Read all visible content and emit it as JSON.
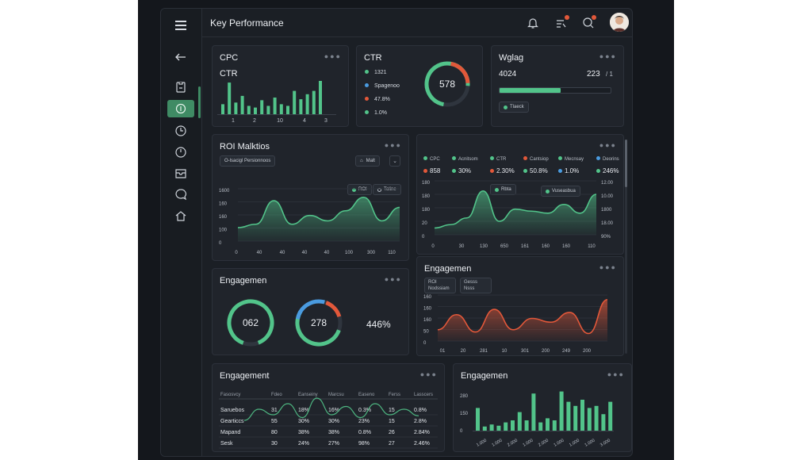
{
  "header": {
    "title": "Key Performance"
  },
  "icons": [
    "menu-icon",
    "back-arrow-icon",
    "clipboard-icon",
    "dollar-icon",
    "clock-icon",
    "clock-outline-icon",
    "inbox-icon",
    "chat-icon",
    "home-icon",
    "bell-icon",
    "notification-icon",
    "user-search-icon"
  ],
  "colors": {
    "accent_green": "#52c48a",
    "accent_red": "#e2583a",
    "accent_blue": "#4a9be0",
    "background": "#14171c",
    "panel": "#20242b"
  },
  "cpc_card": {
    "title": "CPC",
    "subtitle": "CTR",
    "x_labels": [
      "1",
      "2",
      "10",
      "4",
      "3"
    ],
    "bars": [
      0.3,
      0.95,
      0.35,
      0.55,
      0.25,
      0.2,
      0.42,
      0.25,
      0.5,
      0.3,
      0.25,
      0.7,
      0.45,
      0.6,
      0.7,
      1.0
    ]
  },
  "ctr_card": {
    "title": "CTR",
    "gauge_value": "578",
    "legend": [
      {
        "label": "1321",
        "color": "#52c48a"
      },
      {
        "label": "Spagenoo",
        "color": "#4a9be0"
      },
      {
        "label": "47.8%",
        "color": "#e2583a"
      },
      {
        "label": "1.0%",
        "color": "#52c48a"
      }
    ]
  },
  "wglag_card": {
    "title": "Wglag",
    "value": "4024",
    "right_value": "223",
    "right_suffix": "/ 1",
    "progress": 0.55,
    "pill": "Tlaeck"
  },
  "roi_card": {
    "title": "ROI Malktios",
    "filter": "O-lsacigl Persionnoos",
    "select_label": "Malt",
    "legend_a": "ROI",
    "legend_b": "Toline",
    "y_labels": [
      "1600",
      "160",
      "160",
      "100",
      "0"
    ],
    "x_labels": [
      "0",
      "40",
      "40",
      "40",
      "40",
      "100",
      "300",
      "110"
    ],
    "series": [
      2,
      2.5,
      6,
      2.5,
      3.8,
      3,
      4.5,
      6.5,
      3,
      5
    ]
  },
  "multi_card": {
    "legend": [
      {
        "label": "CPC",
        "color": "#52c48a"
      },
      {
        "label": "Acnitsom",
        "color": "#52c48a"
      },
      {
        "label": "CTR",
        "color": "#52c48a"
      },
      {
        "label": "Cantsiop",
        "color": "#e2583a"
      },
      {
        "label": "Mecnsay",
        "color": "#52c48a"
      },
      {
        "label": "Deorins",
        "color": "#4a9be0"
      }
    ],
    "values": [
      {
        "label": "858",
        "color": "#e2583a"
      },
      {
        "label": "30%",
        "color": "#52c48a"
      },
      {
        "label": "2.30%",
        "color": "#e2583a"
      },
      {
        "label": "50.8%",
        "color": "#52c48a"
      },
      {
        "label": "1.0%",
        "color": "#4a9be0"
      },
      {
        "label": "246%",
        "color": "#52c48a"
      }
    ],
    "y_left": [
      "180",
      "180",
      "180",
      "20",
      "0"
    ],
    "y_right": [
      "12.00",
      "10.00",
      "1800",
      "18.00",
      "90%"
    ],
    "x_labels": [
      "0",
      "30",
      "130",
      "650",
      "161",
      "160",
      "160",
      "110"
    ],
    "tag_a": "Rbta",
    "tag_b": "Vuseasbua",
    "series": [
      1,
      1.5,
      2.5,
      6.5,
      2,
      3.8,
      3.5,
      3.2,
      4.5,
      3.2,
      6
    ]
  },
  "engagement_gauges": {
    "title": "Engagemen",
    "gauge1": "062",
    "gauge2": "278",
    "value3": "446%"
  },
  "engagement_red": {
    "title": "Engagemen",
    "tab_a_line1": "ROI",
    "tab_a_line2": "Nodssiam",
    "tab_b_line1": "Gesss",
    "tab_b_line2": "Nsss",
    "y_labels": [
      "160",
      "160",
      "160",
      "50",
      "0"
    ],
    "x_labels": [
      "01",
      "20",
      "281",
      "10",
      "301",
      "200",
      "249",
      "200"
    ],
    "series": [
      1.5,
      3.5,
      1.2,
      4.2,
      1.5,
      3.0,
      2.5,
      3.8,
      1.0,
      5.5
    ]
  },
  "engagement_table": {
    "title": "Engagement",
    "columns": [
      "Fasosvcy",
      "Fdeo",
      "Eanseiny",
      "Marcsu",
      "Easeno",
      "Ferss",
      "Lasscers"
    ],
    "rows": [
      [
        "Saruebos",
        "31",
        "18%",
        "16%",
        "0.3%",
        "15",
        "0.8%"
      ],
      [
        "Gearticcs",
        "55",
        "30%",
        "30%",
        "23%",
        "15",
        "2.8%"
      ],
      [
        "Mapand",
        "80",
        "38%",
        "38%",
        "0.8%",
        "26",
        "2.84%"
      ],
      [
        "Sesk",
        "30",
        "24%",
        "27%",
        "98%",
        "27",
        "2.46%"
      ]
    ],
    "line": [
      1,
      3,
      2,
      4,
      1.5,
      5,
      2,
      3.5,
      1.5,
      4,
      2,
      3,
      1.8
    ]
  },
  "engagement_bars": {
    "title": "Engagemen",
    "y_labels": [
      "280",
      "150",
      "0"
    ],
    "x_labels": [
      "1.000",
      "1.000",
      "2.000",
      "1.000",
      "2.000",
      "1.000",
      "1.000",
      "1.000",
      "3.000"
    ],
    "bars": [
      0.55,
      0.1,
      0.15,
      0.12,
      0.2,
      0.25,
      0.45,
      0.25,
      0.9,
      0.2,
      0.3,
      0.25,
      0.95,
      0.7,
      0.6,
      0.75,
      0.55,
      0.6,
      0.4,
      0.7
    ]
  }
}
